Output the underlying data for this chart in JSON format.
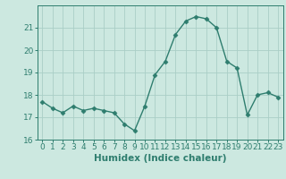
{
  "x": [
    0,
    1,
    2,
    3,
    4,
    5,
    6,
    7,
    8,
    9,
    10,
    11,
    12,
    13,
    14,
    15,
    16,
    17,
    18,
    19,
    20,
    21,
    22,
    23
  ],
  "y": [
    17.7,
    17.4,
    17.2,
    17.5,
    17.3,
    17.4,
    17.3,
    17.2,
    16.7,
    16.4,
    17.5,
    18.9,
    19.5,
    20.7,
    21.3,
    21.5,
    21.4,
    21.0,
    19.5,
    19.2,
    17.1,
    18.0,
    18.1,
    17.9
  ],
  "line_color": "#2e7d6e",
  "marker": "D",
  "markersize": 2.5,
  "linewidth": 1.0,
  "bg_color": "#cce8e0",
  "grid_color": "#aacec6",
  "xlabel": "Humidex (Indice chaleur)",
  "xlim": [
    -0.5,
    23.5
  ],
  "ylim": [
    16.0,
    22.0
  ],
  "yticks": [
    16,
    17,
    18,
    19,
    20,
    21
  ],
  "xticks": [
    0,
    1,
    2,
    3,
    4,
    5,
    6,
    7,
    8,
    9,
    10,
    11,
    12,
    13,
    14,
    15,
    16,
    17,
    18,
    19,
    20,
    21,
    22,
    23
  ],
  "xlabel_fontsize": 7.5,
  "tick_fontsize": 6.5
}
